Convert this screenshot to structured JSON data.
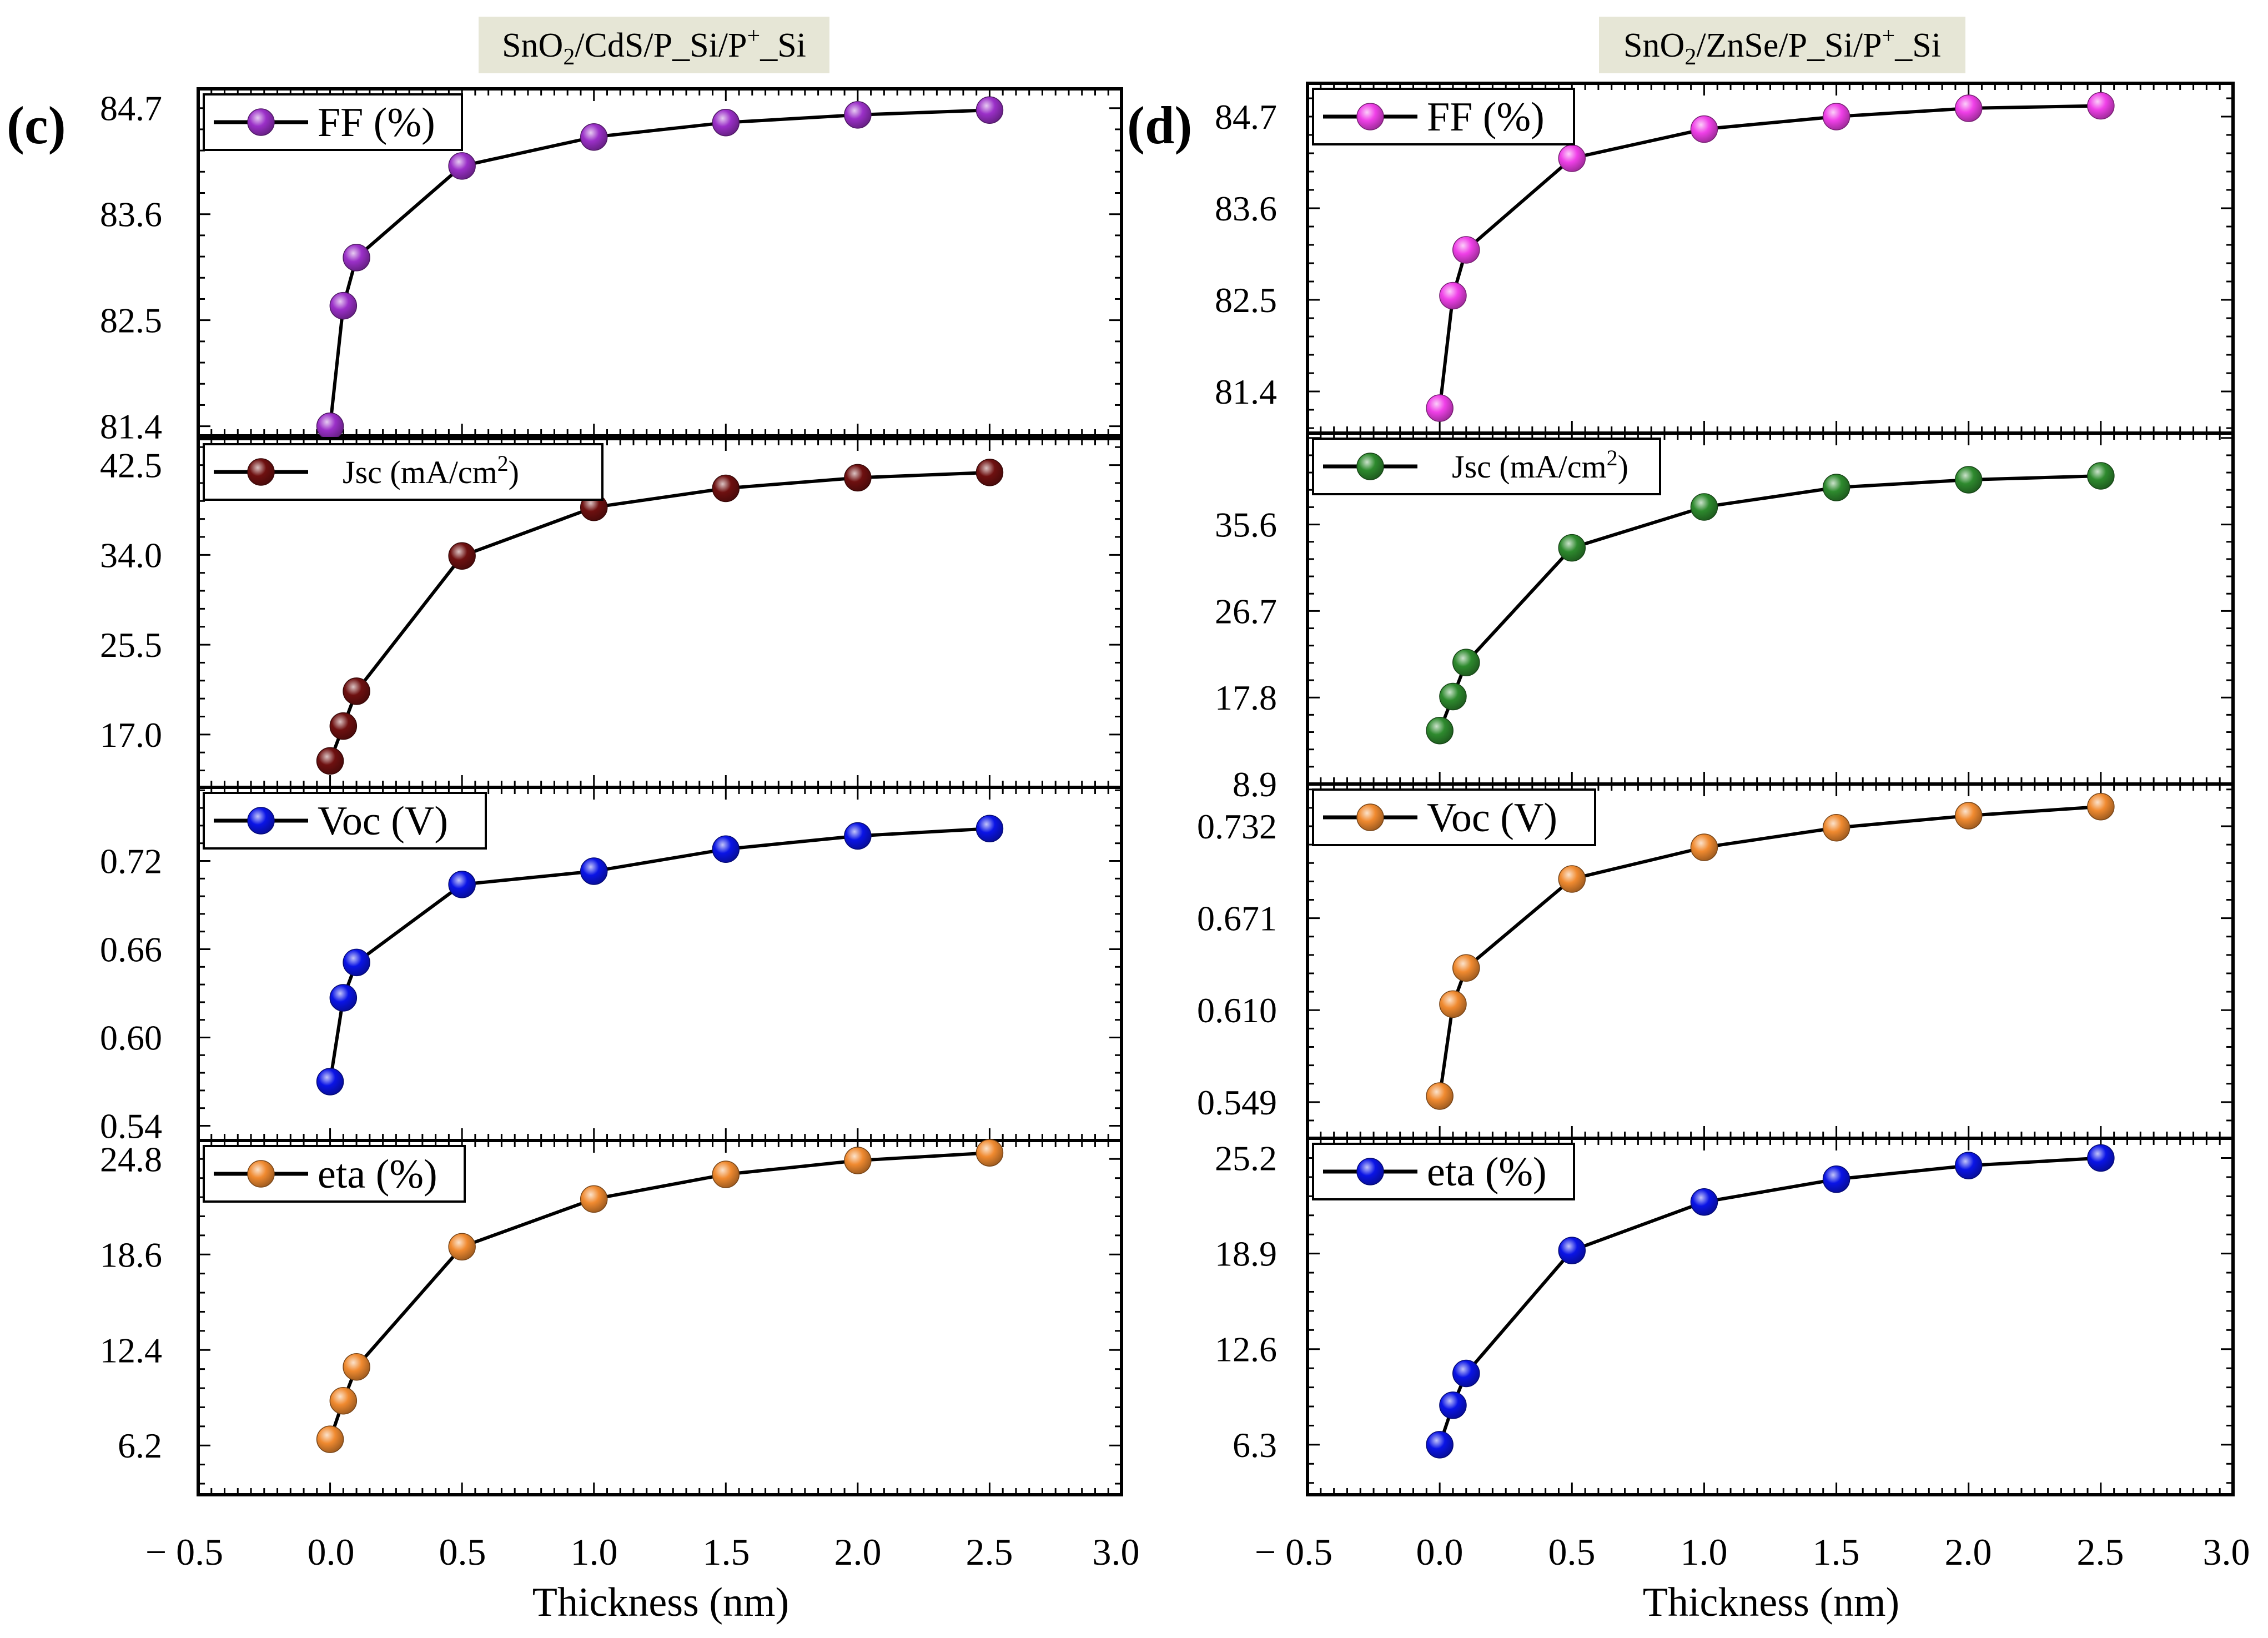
{
  "chart_data": [
    {
      "type": "line",
      "panel_label": "(c)",
      "title": "SnO2/CdS/P_Si/P+_Si",
      "title_parts": {
        "a": "SnO",
        "b": "2",
        "c": "/CdS/P_Si/P",
        "d": "+",
        "e": "_Si"
      },
      "xlabel": "Thickness (nm)",
      "xlim": [
        -0.5,
        3.0
      ],
      "xticks": [
        "− 0.5",
        "0.0",
        "0.5",
        "1.0",
        "1.5",
        "2.0",
        "2.5",
        "3.0"
      ],
      "x": [
        0.0,
        0.05,
        0.1,
        0.5,
        1.0,
        1.5,
        2.0,
        2.5
      ],
      "subplots": [
        {
          "key": "FF",
          "legend": "FF (%)",
          "color": "#9b30c8",
          "ylim": [
            81.3,
            84.9
          ],
          "yticks": [
            "81.4",
            "82.5",
            "83.6",
            "84.7"
          ],
          "tick_values": [
            81.4,
            82.5,
            83.6,
            84.7
          ],
          "values": [
            81.4,
            82.65,
            83.15,
            84.1,
            84.4,
            84.55,
            84.63,
            84.68
          ]
        },
        {
          "key": "Jsc",
          "legend": "Jsc (mA/cm2)",
          "legend_parts": {
            "a": "Jsc (mA/cm",
            "b": "2",
            "c": ")"
          },
          "color": "#6e1010",
          "ylim": [
            12.0,
            45.0
          ],
          "yticks": [
            "17.0",
            "25.5",
            "34.0",
            "42.5"
          ],
          "tick_values": [
            17.0,
            25.5,
            34.0,
            42.5
          ],
          "values": [
            14.5,
            17.8,
            21.1,
            33.9,
            38.5,
            40.3,
            41.3,
            41.8
          ]
        },
        {
          "key": "Voc",
          "legend": "Voc (V)",
          "color": "#0a14e6",
          "ylim": [
            0.53,
            0.77
          ],
          "yticks": [
            "0.54",
            "0.60",
            "0.66",
            "0.72"
          ],
          "tick_values": [
            0.54,
            0.6,
            0.66,
            0.72
          ],
          "values": [
            0.57,
            0.627,
            0.651,
            0.704,
            0.713,
            0.728,
            0.737,
            0.742
          ]
        },
        {
          "key": "eta",
          "legend": "eta (%)",
          "color": "#f08a30",
          "ylim": [
            3.0,
            26.0
          ],
          "yticks": [
            "6.2",
            "12.4",
            "18.6",
            "24.8"
          ],
          "tick_values": [
            6.2,
            12.4,
            18.6,
            24.8
          ],
          "values": [
            6.6,
            9.1,
            11.3,
            19.1,
            22.2,
            23.8,
            24.7,
            25.2
          ]
        }
      ]
    },
    {
      "type": "line",
      "panel_label": "(d)",
      "title": "SnO2/ZnSe/P_Si/P+_Si",
      "title_parts": {
        "a": "SnO",
        "b": "2",
        "c": "/ZnSe/P_Si/P",
        "d": "+",
        "e": "_Si"
      },
      "xlabel": "Thickness (nm)",
      "xlim": [
        -0.5,
        3.0
      ],
      "xticks": [
        "− 0.5",
        "0.0",
        "0.5",
        "1.0",
        "1.5",
        "2.0",
        "2.5",
        "3.0"
      ],
      "x": [
        0.0,
        0.05,
        0.1,
        0.5,
        1.0,
        1.5,
        2.0,
        2.5
      ],
      "subplots": [
        {
          "key": "FF",
          "legend": "FF (%)",
          "color": "#f040e8",
          "ylim": [
            80.9,
            85.1
          ],
          "yticks": [
            "81.4",
            "82.5",
            "83.6",
            "84.7"
          ],
          "tick_values": [
            81.4,
            82.5,
            83.6,
            84.7
          ],
          "values": [
            81.2,
            82.55,
            83.1,
            84.2,
            84.55,
            84.7,
            84.8,
            84.83
          ]
        },
        {
          "key": "Jsc",
          "legend": "Jsc (mA/cm2)",
          "legend_parts": {
            "a": "Jsc (mA/cm",
            "b": "2",
            "c": ")"
          },
          "color": "#2e8a2e",
          "ylim": [
            8.9,
            45.0
          ],
          "yticks": [
            "8.9",
            "17.8",
            "26.7",
            "35.6"
          ],
          "tick_values": [
            8.9,
            17.8,
            26.7,
            35.6
          ],
          "values": [
            14.4,
            17.9,
            21.4,
            33.2,
            37.4,
            39.4,
            40.2,
            40.6
          ]
        },
        {
          "key": "Voc",
          "legend": "Voc (V)",
          "color": "#f08a30",
          "ylim": [
            0.525,
            0.76
          ],
          "yticks": [
            "0.549",
            "0.610",
            "0.671",
            "0.732"
          ],
          "tick_values": [
            0.549,
            0.61,
            0.671,
            0.732
          ],
          "values": [
            0.553,
            0.614,
            0.638,
            0.697,
            0.718,
            0.731,
            0.739,
            0.745
          ]
        },
        {
          "key": "eta",
          "legend": "eta (%)",
          "color": "#0a14e6",
          "ylim": [
            3.0,
            26.5
          ],
          "yticks": [
            "6.3",
            "12.6",
            "18.9",
            "25.2"
          ],
          "tick_values": [
            6.3,
            12.6,
            18.9,
            25.2
          ],
          "values": [
            6.3,
            8.9,
            11.0,
            19.1,
            22.3,
            23.8,
            24.7,
            25.2
          ]
        }
      ]
    }
  ]
}
